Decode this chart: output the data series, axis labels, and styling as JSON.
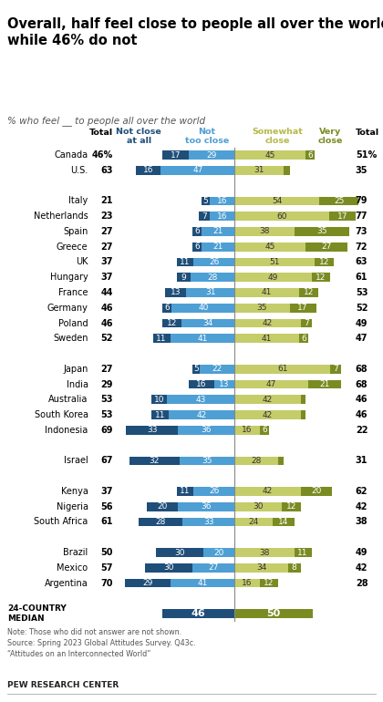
{
  "title": "Overall, half feel close to people all over the world,\nwhile 46% do not",
  "subtitle": "% who feel __ to people all over the world",
  "countries": [
    "Canada",
    "U.S.",
    null,
    "Italy",
    "Netherlands",
    "Spain",
    "Greece",
    "UK",
    "Hungary",
    "France",
    "Germany",
    "Poland",
    "Sweden",
    null,
    "Japan",
    "India",
    "Australia",
    "South Korea",
    "Indonesia",
    null,
    "Israel",
    null,
    "Kenya",
    "Nigeria",
    "South Africa",
    null,
    "Brazil",
    "Mexico",
    "Argentina",
    null,
    "24-COUNTRY\nMEDIAN"
  ],
  "total_left": [
    46,
    63,
    null,
    21,
    23,
    27,
    27,
    37,
    37,
    44,
    46,
    46,
    52,
    null,
    27,
    29,
    53,
    53,
    69,
    null,
    67,
    null,
    37,
    56,
    61,
    null,
    50,
    57,
    70,
    null,
    null
  ],
  "total_right": [
    51,
    35,
    null,
    79,
    77,
    73,
    72,
    63,
    61,
    53,
    52,
    49,
    47,
    null,
    68,
    68,
    46,
    46,
    22,
    null,
    31,
    null,
    62,
    42,
    38,
    null,
    49,
    42,
    28,
    null,
    null
  ],
  "not_close_at_all": [
    17,
    16,
    null,
    5,
    7,
    6,
    6,
    11,
    9,
    13,
    6,
    12,
    11,
    null,
    5,
    16,
    10,
    11,
    33,
    null,
    32,
    null,
    11,
    20,
    28,
    null,
    30,
    30,
    29,
    null,
    46
  ],
  "not_too_close": [
    29,
    47,
    null,
    16,
    16,
    21,
    21,
    26,
    28,
    31,
    40,
    34,
    41,
    null,
    22,
    13,
    43,
    42,
    36,
    null,
    35,
    null,
    26,
    36,
    33,
    null,
    20,
    27,
    41,
    null,
    0
  ],
  "somewhat_close": [
    45,
    31,
    null,
    54,
    60,
    38,
    45,
    51,
    49,
    41,
    35,
    42,
    41,
    null,
    61,
    47,
    42,
    42,
    16,
    null,
    28,
    null,
    42,
    30,
    24,
    null,
    38,
    34,
    16,
    null,
    50
  ],
  "very_close": [
    6,
    4,
    null,
    25,
    17,
    35,
    27,
    12,
    12,
    12,
    17,
    7,
    6,
    null,
    7,
    21,
    3,
    3,
    6,
    null,
    3,
    null,
    20,
    12,
    14,
    null,
    11,
    8,
    12,
    null,
    0
  ],
  "is_median": [
    false,
    false,
    false,
    false,
    false,
    false,
    false,
    false,
    false,
    false,
    false,
    false,
    false,
    false,
    false,
    false,
    false,
    false,
    false,
    false,
    false,
    false,
    false,
    false,
    false,
    false,
    false,
    false,
    false,
    false,
    true
  ],
  "first_row_pct": true,
  "colors": {
    "not_close_at_all": "#1f4e79",
    "not_too_close": "#4e9fd4",
    "somewhat_close": "#c5cc6a",
    "very_close": "#7a8b22",
    "median_left": "#1f4e79",
    "median_right": "#7a8b22"
  }
}
